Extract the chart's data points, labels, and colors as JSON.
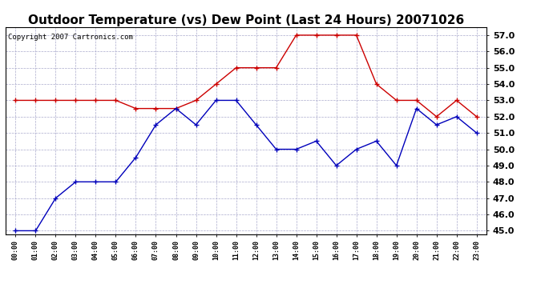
{
  "title": "Outdoor Temperature (vs) Dew Point (Last 24 Hours) 20071026",
  "copyright": "Copyright 2007 Cartronics.com",
  "x_labels": [
    "00:00",
    "01:00",
    "02:00",
    "03:00",
    "04:00",
    "05:00",
    "06:00",
    "07:00",
    "08:00",
    "09:00",
    "10:00",
    "11:00",
    "12:00",
    "13:00",
    "14:00",
    "15:00",
    "16:00",
    "17:00",
    "18:00",
    "19:00",
    "20:00",
    "21:00",
    "22:00",
    "23:00"
  ],
  "temp_red": [
    53.0,
    53.0,
    53.0,
    53.0,
    53.0,
    53.0,
    52.5,
    52.5,
    52.5,
    53.0,
    54.0,
    55.0,
    55.0,
    55.0,
    57.0,
    57.0,
    57.0,
    57.0,
    54.0,
    53.0,
    53.0,
    52.0,
    53.0,
    52.0
  ],
  "temp_blue": [
    45.0,
    45.0,
    47.0,
    48.0,
    48.0,
    48.0,
    49.5,
    51.5,
    52.5,
    51.5,
    53.0,
    53.0,
    51.5,
    50.0,
    50.0,
    50.5,
    49.0,
    50.0,
    50.5,
    49.0,
    52.5,
    51.5,
    52.0,
    51.0
  ],
  "ylim": [
    44.8,
    57.5
  ],
  "yticks": [
    45.0,
    46.0,
    47.0,
    48.0,
    49.0,
    50.0,
    51.0,
    52.0,
    53.0,
    54.0,
    55.0,
    56.0,
    57.0
  ],
  "red_color": "#cc0000",
  "blue_color": "#0000bb",
  "bg_color": "#ffffff",
  "grid_color": "#aaaacc",
  "title_fontsize": 11,
  "copyright_fontsize": 6.5,
  "tick_fontsize": 8,
  "xtick_fontsize": 6
}
